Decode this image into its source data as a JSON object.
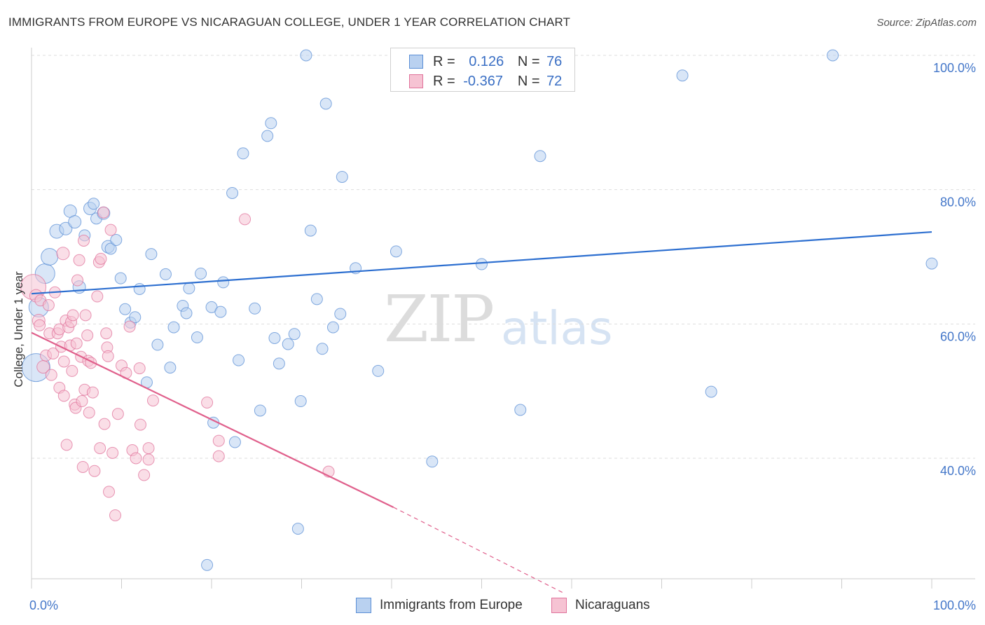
{
  "header": {
    "title": "IMMIGRANTS FROM EUROPE VS NICARAGUAN COLLEGE, UNDER 1 YEAR CORRELATION CHART",
    "source": "Source: ZipAtlas.com"
  },
  "watermark": {
    "zip": "ZIP",
    "atlas": "atlas"
  },
  "legend": {
    "r_label": "R =",
    "n_label": "N =",
    "series1": {
      "r": "0.126",
      "n": "76"
    },
    "series2": {
      "r": "-0.367",
      "n": "72"
    }
  },
  "bottom_legend": {
    "series1": "Immigrants from Europe",
    "series2": "Nicaraguans"
  },
  "colors": {
    "blue_fill": "#b9d1f0",
    "blue_stroke": "#5b8fd6",
    "blue_line": "#2d6fd0",
    "pink_fill": "#f6c3d3",
    "pink_stroke": "#e0739b",
    "pink_line": "#e0608c",
    "tick_label": "#4477c9",
    "grid": "#dddddd"
  },
  "chart_data": {
    "type": "scatter",
    "title": "IMMIGRANTS FROM EUROPE VS NICARAGUAN COLLEGE, UNDER 1 YEAR CORRELATION CHART",
    "xlabel": "",
    "ylabel": "College, Under 1 year",
    "xlim": [
      0,
      100
    ],
    "ylim": [
      20,
      104
    ],
    "x_tick_labels": [
      "0.0%",
      "100.0%"
    ],
    "y_ticks": [
      40,
      60,
      80,
      100
    ],
    "y_tick_labels": [
      "40.0%",
      "60.0%",
      "80.0%",
      "100.0%"
    ],
    "grid": true,
    "legend_position": "top-center",
    "series": [
      {
        "name": "Immigrants from Europe",
        "color": "#5b8fd6",
        "points": [
          [
            0.5,
            53.5,
            20
          ],
          [
            0.8,
            62.5,
            14
          ],
          [
            1.5,
            67.5,
            14
          ],
          [
            2,
            70,
            12
          ],
          [
            2.8,
            73.8,
            10
          ],
          [
            3.8,
            74.2,
            9
          ],
          [
            4.3,
            76.8,
            9
          ],
          [
            4.8,
            75.2,
            9
          ],
          [
            5.3,
            65.5,
            9
          ],
          [
            5.9,
            73.2,
            8
          ],
          [
            6.5,
            77.2,
            9
          ],
          [
            6.9,
            77.9,
            8
          ],
          [
            7.2,
            75.7,
            8
          ],
          [
            8,
            76.5,
            9
          ],
          [
            8.5,
            71.5,
            9
          ],
          [
            8.8,
            71.2,
            8
          ],
          [
            9.4,
            72.5,
            8
          ],
          [
            9.9,
            66.8,
            8
          ],
          [
            10.4,
            62.2,
            8
          ],
          [
            11,
            60.2,
            8
          ],
          [
            11.5,
            61,
            8
          ],
          [
            12,
            65.2,
            8
          ],
          [
            12.8,
            51.3,
            8
          ],
          [
            13.3,
            70.4,
            8
          ],
          [
            14,
            56.9,
            8
          ],
          [
            14.9,
            67.4,
            8
          ],
          [
            15.4,
            53.5,
            8
          ],
          [
            15.8,
            59.5,
            8
          ],
          [
            16.8,
            62.7,
            8
          ],
          [
            17.2,
            61.6,
            8
          ],
          [
            17.5,
            65.3,
            8
          ],
          [
            18.4,
            58,
            8
          ],
          [
            18.8,
            67.5,
            8
          ],
          [
            19.5,
            24.1,
            8
          ],
          [
            20,
            62.5,
            8
          ],
          [
            20.2,
            45.3,
            8
          ],
          [
            21,
            61.8,
            8
          ],
          [
            21.3,
            66.2,
            8
          ],
          [
            22.3,
            79.5,
            8
          ],
          [
            22.6,
            42.4,
            8
          ],
          [
            23,
            54.6,
            8
          ],
          [
            23.5,
            85.4,
            8
          ],
          [
            24.8,
            62.3,
            8
          ],
          [
            25.4,
            47.1,
            8
          ],
          [
            26.2,
            88,
            8
          ],
          [
            26.6,
            89.9,
            8
          ],
          [
            27,
            57.9,
            8
          ],
          [
            27.5,
            54.1,
            8
          ],
          [
            28.5,
            57,
            8
          ],
          [
            29.2,
            58.5,
            8
          ],
          [
            29.6,
            29.5,
            8
          ],
          [
            29.9,
            48.5,
            8
          ],
          [
            30.5,
            100,
            8
          ],
          [
            31,
            73.9,
            8
          ],
          [
            31.7,
            63.7,
            8
          ],
          [
            32.3,
            56.3,
            8
          ],
          [
            32.7,
            92.8,
            8
          ],
          [
            33.5,
            59.5,
            8
          ],
          [
            34.3,
            61.5,
            8
          ],
          [
            34.5,
            81.9,
            8
          ],
          [
            36,
            68.3,
            8
          ],
          [
            38.5,
            53,
            8
          ],
          [
            40.5,
            70.8,
            8
          ],
          [
            44.5,
            39.5,
            8
          ],
          [
            47,
            100,
            8
          ],
          [
            50,
            68.9,
            8
          ],
          [
            54.3,
            47.2,
            8
          ],
          [
            56.5,
            85,
            8
          ],
          [
            72.3,
            97,
            8
          ],
          [
            75.5,
            49.9,
            8
          ],
          [
            89,
            100,
            8
          ],
          [
            100,
            69,
            8
          ]
        ]
      },
      {
        "name": "Nicaraguans",
        "color": "#e0739b",
        "points": [
          [
            0.2,
            65.5,
            18
          ],
          [
            0.5,
            64.2,
            9
          ],
          [
            0.8,
            60.5,
            9
          ],
          [
            0.9,
            59.8,
            8
          ],
          [
            1,
            63.5,
            8
          ],
          [
            1.3,
            53.6,
            9
          ],
          [
            1.6,
            55.3,
            8
          ],
          [
            1.9,
            62.8,
            8
          ],
          [
            2,
            58.6,
            8
          ],
          [
            2.2,
            52.4,
            8
          ],
          [
            2.4,
            55.6,
            8
          ],
          [
            2.6,
            64.7,
            8
          ],
          [
            2.9,
            58.6,
            8
          ],
          [
            3.1,
            59.2,
            8
          ],
          [
            3.1,
            50.5,
            8
          ],
          [
            3.3,
            56.6,
            8
          ],
          [
            3.5,
            70.5,
            9
          ],
          [
            3.6,
            54.4,
            8
          ],
          [
            3.6,
            49.3,
            8
          ],
          [
            3.8,
            60.5,
            8
          ],
          [
            3.9,
            42,
            8
          ],
          [
            4.1,
            59.5,
            8
          ],
          [
            4.3,
            56.8,
            8
          ],
          [
            4.4,
            60.3,
            8
          ],
          [
            4.5,
            53,
            8
          ],
          [
            4.6,
            61.3,
            8
          ],
          [
            4.8,
            48,
            8
          ],
          [
            4.9,
            47.5,
            8
          ],
          [
            5,
            57.1,
            8
          ],
          [
            5.1,
            66.5,
            8
          ],
          [
            5.3,
            69.5,
            8
          ],
          [
            5.5,
            55.1,
            8
          ],
          [
            5.6,
            48.5,
            8
          ],
          [
            5.7,
            38.7,
            8
          ],
          [
            5.8,
            72.4,
            8
          ],
          [
            5.9,
            50.2,
            8
          ],
          [
            6,
            61.3,
            8
          ],
          [
            6.2,
            58.3,
            8
          ],
          [
            6.3,
            54.5,
            8
          ],
          [
            6.4,
            46.8,
            8
          ],
          [
            6.6,
            54.2,
            8
          ],
          [
            6.8,
            49.8,
            8
          ],
          [
            7,
            38.1,
            8
          ],
          [
            7.3,
            64.1,
            8
          ],
          [
            7.5,
            69.2,
            8
          ],
          [
            7.6,
            41.5,
            8
          ],
          [
            7.7,
            69.7,
            8
          ],
          [
            8,
            76.6,
            8
          ],
          [
            8.1,
            45.1,
            8
          ],
          [
            8.3,
            58.6,
            8
          ],
          [
            8.4,
            56.5,
            8
          ],
          [
            8.5,
            55.2,
            8
          ],
          [
            8.6,
            35,
            8
          ],
          [
            8.8,
            74,
            8
          ],
          [
            9,
            40.8,
            8
          ],
          [
            9.3,
            31.5,
            8
          ],
          [
            9.6,
            46.6,
            8
          ],
          [
            10,
            53.8,
            8
          ],
          [
            10.5,
            52.7,
            8
          ],
          [
            10.9,
            59.6,
            8
          ],
          [
            11.2,
            41.2,
            8
          ],
          [
            11.6,
            40,
            8
          ],
          [
            12,
            53.4,
            8
          ],
          [
            12.1,
            45,
            8
          ],
          [
            12.5,
            37.5,
            8
          ],
          [
            13,
            41.5,
            8
          ],
          [
            13,
            39.8,
            8
          ],
          [
            13.5,
            48.6,
            8
          ],
          [
            19.5,
            48.3,
            8
          ],
          [
            20.8,
            42.6,
            8
          ],
          [
            20.8,
            40.3,
            8
          ],
          [
            23.7,
            75.6,
            8
          ],
          [
            33,
            38,
            8
          ]
        ]
      }
    ],
    "trend_lines": [
      {
        "series": "Immigrants from Europe",
        "x": [
          0,
          100
        ],
        "y": [
          64.5,
          73.7
        ]
      },
      {
        "series": "Nicaraguans",
        "x": [
          0,
          40.2
        ],
        "y": [
          58.7,
          32.7
        ],
        "dashed_x": [
          40.2,
          59
        ],
        "dashed_y": [
          32.7,
          20
        ]
      }
    ]
  }
}
